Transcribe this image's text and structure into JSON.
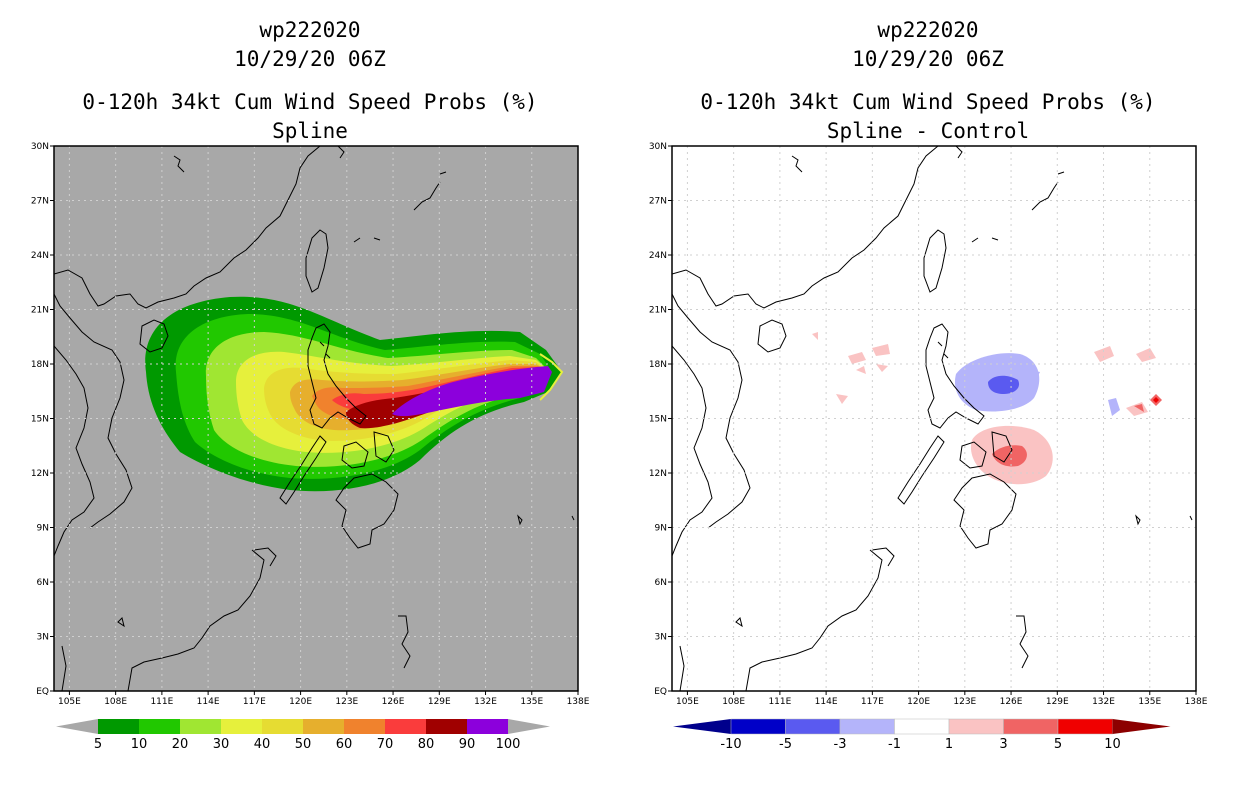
{
  "left_panel": {
    "storm_id": "wp222020",
    "datetime": "10/29/20 06Z",
    "product": "0-120h 34kt Cum Wind Speed Probs (%)",
    "subtitle": "Spline",
    "background_color": "#a8a8a8",
    "colorbar": {
      "labels": [
        "5",
        "10",
        "20",
        "30",
        "40",
        "50",
        "60",
        "70",
        "80",
        "90",
        "100"
      ],
      "colors": [
        "#009900",
        "#21c800",
        "#a0e632",
        "#e6f03c",
        "#e6dc32",
        "#e6af2d",
        "#f0822d",
        "#fa3c3c",
        "#a00000",
        "#8c00dc"
      ],
      "end_color": "#a8a8a8"
    }
  },
  "right_panel": {
    "storm_id": "wp222020",
    "datetime": "10/29/20 06Z",
    "product": "0-120h 34kt Cum Wind Speed Probs (%)",
    "subtitle": "Spline - Control",
    "background_color": "#ffffff",
    "colorbar": {
      "labels": [
        "-10",
        "-5",
        "-3",
        "-1",
        "1",
        "3",
        "5",
        "10"
      ],
      "colors": [
        "#0000c8",
        "#5a5af0",
        "#b4b4fa",
        "#ffffff",
        "#fac3c3",
        "#f06464",
        "#f00000"
      ],
      "low_end_color": "#00008c",
      "high_end_color": "#8c0000"
    }
  },
  "axes": {
    "lat_labels": [
      "30N",
      "27N",
      "24N",
      "21N",
      "18N",
      "15N",
      "12N",
      "9N",
      "6N",
      "3N",
      "EQ"
    ],
    "lon_labels": [
      "105E",
      "108E",
      "111E",
      "114E",
      "117E",
      "120E",
      "123E",
      "126E",
      "129E",
      "132E",
      "135E",
      "138E"
    ]
  },
  "map_extent": {
    "lon_min": 104,
    "lon_max": 138,
    "lat_min": 0,
    "lat_max": 30
  }
}
